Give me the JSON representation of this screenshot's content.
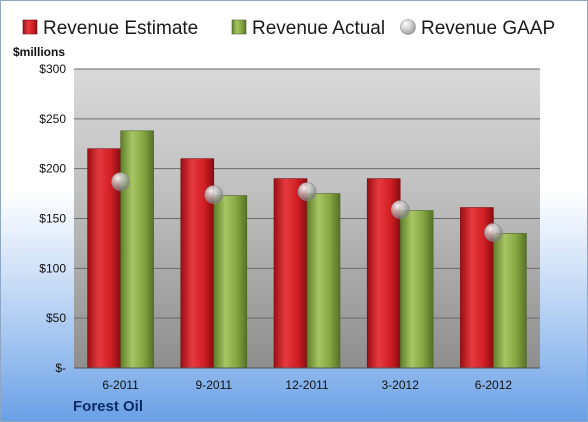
{
  "chart_data": {
    "type": "bar",
    "categories": [
      "6-2011",
      "9-2011",
      "12-2011",
      "3-2012",
      "6-2012"
    ],
    "series": [
      {
        "name": "Revenue Estimate",
        "type": "bar",
        "values": [
          220,
          210,
          190,
          190,
          161
        ]
      },
      {
        "name": "Revenue Actual",
        "type": "bar",
        "values": [
          238,
          173,
          175,
          158,
          135
        ]
      },
      {
        "name": "Revenue GAAP",
        "type": "scatter",
        "values": [
          187,
          174,
          177,
          159,
          136
        ]
      }
    ],
    "ylabel": "$millions",
    "ylim": [
      0,
      300
    ],
    "yticks": [
      0,
      50,
      100,
      150,
      200,
      250,
      300
    ],
    "ytick_labels": [
      "$-",
      "$50",
      "$100",
      "$150",
      "$200",
      "$250",
      "$300"
    ],
    "grid": true,
    "legend": "top",
    "colors": {
      "estimate": "#d9232a",
      "actual": "#86a844",
      "gaap": "#a9a9a9"
    }
  },
  "company": "Forest Oil"
}
